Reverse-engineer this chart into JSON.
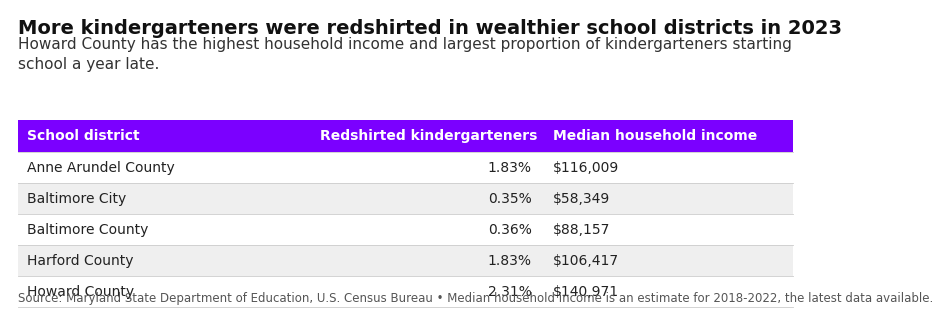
{
  "title": "More kindergarteners were redshirted in wealthier school districts in 2023",
  "subtitle": "Howard County has the highest household income and largest proportion of kindergarteners starting\nschool a year late.",
  "header": [
    "School district",
    "Redshirted kindergarteners",
    "Median household income"
  ],
  "rows": [
    [
      "Anne Arundel County",
      "1.83%",
      "$116,009"
    ],
    [
      "Baltimore City",
      "0.35%",
      "$58,349"
    ],
    [
      "Baltimore County",
      "0.36%",
      "$88,157"
    ],
    [
      "Harford County",
      "1.83%",
      "$106,417"
    ],
    [
      "Howard County",
      "2.31%",
      "$140,971"
    ]
  ],
  "footer": "Source: Maryland State Department of Education, U.S. Census Bureau • Median household income is an estimate for 2018-2022, the latest data available.",
  "header_bg": "#7B00FF",
  "header_text_color": "#FFFFFF",
  "row_bg_odd": "#FFFFFF",
  "row_bg_even": "#EFEFEF",
  "row_text_color": "#222222",
  "title_color": "#111111",
  "subtitle_color": "#333333",
  "footer_color": "#555555",
  "header_font_size": 10,
  "row_font_size": 10,
  "title_font_size": 14,
  "subtitle_font_size": 11,
  "footer_font_size": 8.5
}
